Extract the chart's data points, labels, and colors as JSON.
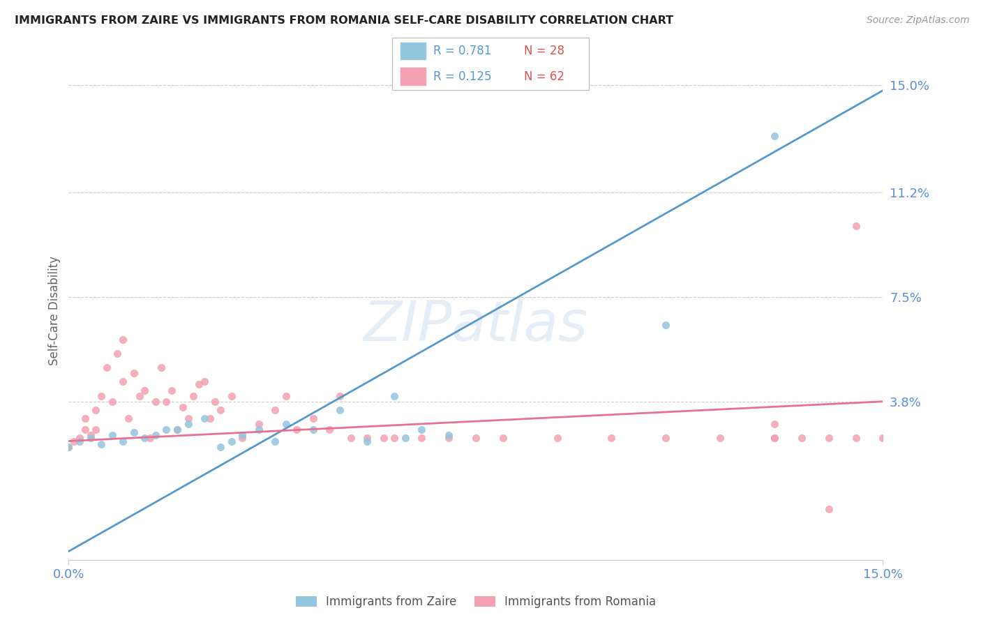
{
  "title": "IMMIGRANTS FROM ZAIRE VS IMMIGRANTS FROM ROMANIA SELF-CARE DISABILITY CORRELATION CHART",
  "source": "Source: ZipAtlas.com",
  "ylabel": "Self-Care Disability",
  "x_min": 0.0,
  "x_max": 0.15,
  "y_min": -0.018,
  "y_max": 0.158,
  "yticks": [
    0.038,
    0.075,
    0.112,
    0.15
  ],
  "ytick_labels": [
    "3.8%",
    "7.5%",
    "11.2%",
    "15.0%"
  ],
  "xticks": [
    0.0,
    0.15
  ],
  "xtick_labels": [
    "0.0%",
    "15.0%"
  ],
  "legend_r1": "R = 0.781",
  "legend_n1": "N = 28",
  "legend_r2": "R = 0.125",
  "legend_n2": "N = 62",
  "legend_label1": "Immigrants from Zaire",
  "legend_label2": "Immigrants from Romania",
  "color_zaire": "#92c5de",
  "color_romania": "#f4a0b0",
  "color_zaire_line": "#5599cc",
  "color_romania_line": "#e87090",
  "background_color": "#ffffff",
  "zaire_line_x0": 0.0,
  "zaire_line_y0": -0.015,
  "zaire_line_x1": 0.15,
  "zaire_line_y1": 0.148,
  "romania_line_x0": 0.0,
  "romania_line_y0": 0.024,
  "romania_line_x1": 0.15,
  "romania_line_y1": 0.038,
  "zaire_scatter_x": [
    0.0,
    0.002,
    0.004,
    0.006,
    0.008,
    0.01,
    0.012,
    0.014,
    0.016,
    0.018,
    0.02,
    0.022,
    0.025,
    0.028,
    0.03,
    0.032,
    0.035,
    0.038,
    0.04,
    0.045,
    0.05,
    0.055,
    0.06,
    0.062,
    0.065,
    0.07,
    0.11,
    0.13
  ],
  "zaire_scatter_y": [
    0.022,
    0.024,
    0.025,
    0.023,
    0.026,
    0.024,
    0.027,
    0.025,
    0.026,
    0.028,
    0.028,
    0.03,
    0.032,
    0.022,
    0.024,
    0.026,
    0.028,
    0.024,
    0.03,
    0.028,
    0.035,
    0.024,
    0.04,
    0.025,
    0.028,
    0.026,
    0.065,
    0.132
  ],
  "romania_scatter_x": [
    0.0,
    0.001,
    0.002,
    0.003,
    0.003,
    0.004,
    0.005,
    0.005,
    0.006,
    0.007,
    0.008,
    0.009,
    0.01,
    0.01,
    0.011,
    0.012,
    0.013,
    0.014,
    0.015,
    0.016,
    0.017,
    0.018,
    0.019,
    0.02,
    0.021,
    0.022,
    0.023,
    0.024,
    0.025,
    0.026,
    0.027,
    0.028,
    0.03,
    0.032,
    0.035,
    0.038,
    0.04,
    0.042,
    0.045,
    0.048,
    0.05,
    0.052,
    0.055,
    0.058,
    0.06,
    0.065,
    0.07,
    0.075,
    0.08,
    0.09,
    0.1,
    0.11,
    0.12,
    0.13,
    0.135,
    0.14,
    0.145,
    0.15,
    0.13,
    0.14,
    0.145,
    0.13
  ],
  "romania_scatter_y": [
    0.022,
    0.024,
    0.025,
    0.028,
    0.032,
    0.026,
    0.028,
    0.035,
    0.04,
    0.05,
    0.038,
    0.055,
    0.045,
    0.06,
    0.032,
    0.048,
    0.04,
    0.042,
    0.025,
    0.038,
    0.05,
    0.038,
    0.042,
    0.028,
    0.036,
    0.032,
    0.04,
    0.044,
    0.045,
    0.032,
    0.038,
    0.035,
    0.04,
    0.025,
    0.03,
    0.035,
    0.04,
    0.028,
    0.032,
    0.028,
    0.04,
    0.025,
    0.025,
    0.025,
    0.025,
    0.025,
    0.025,
    0.025,
    0.025,
    0.025,
    0.025,
    0.025,
    0.025,
    0.025,
    0.025,
    0.025,
    0.025,
    0.025,
    0.025,
    0.0,
    0.1,
    0.03
  ]
}
